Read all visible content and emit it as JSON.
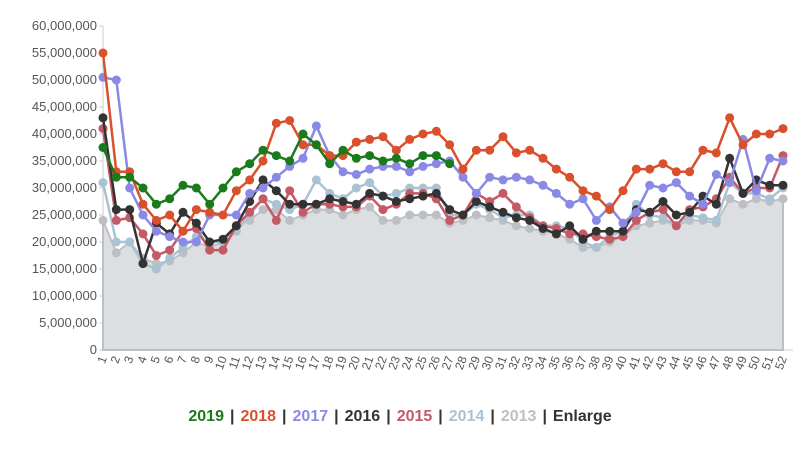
{
  "chart_data": {
    "type": "line",
    "categories": [
      "1",
      "2",
      "3",
      "4",
      "5",
      "6",
      "7",
      "8",
      "9",
      "10",
      "11",
      "12",
      "13",
      "14",
      "15",
      "16",
      "17",
      "18",
      "19",
      "20",
      "21",
      "22",
      "23",
      "24",
      "25",
      "26",
      "27",
      "28",
      "29",
      "30",
      "31",
      "32",
      "33",
      "34",
      "35",
      "36",
      "37",
      "38",
      "39",
      "40",
      "41",
      "42",
      "43",
      "44",
      "45",
      "46",
      "47",
      "48",
      "49",
      "50",
      "51",
      "52"
    ],
    "ylim": [
      0,
      60000000
    ],
    "yticks": [
      0,
      {
        "value": 5000000,
        "label": "5,000,000"
      },
      {
        "value": 10000000,
        "label": "10,000,000"
      },
      {
        "value": 15000000,
        "label": "15,000,000"
      },
      {
        "value": 20000000,
        "label": "20,000,000"
      },
      {
        "value": 25000000,
        "label": "25,000,000"
      },
      {
        "value": 30000000,
        "label": "30,000,000"
      },
      {
        "value": 35000000,
        "label": "35,000,000"
      },
      {
        "value": 40000000,
        "label": "40,000,000"
      },
      {
        "value": 45000000,
        "label": "45,000,000"
      },
      {
        "value": 50000000,
        "label": "50,000,000"
      },
      {
        "value": 55000000,
        "label": "55,000,000"
      },
      {
        "value": 60000000,
        "label": "60,000,000"
      }
    ],
    "legend_separator": "|",
    "enlarge": "Enlarge",
    "series": [
      {
        "name": "2019",
        "color": "#1b7a1b",
        "values": [
          37500000,
          32000000,
          32000000,
          30000000,
          27000000,
          28000000,
          30500000,
          30000000,
          27000000,
          30000000,
          33000000,
          34500000,
          37000000,
          36000000,
          35000000,
          40000000,
          38000000,
          34500000,
          37000000,
          35500000,
          36000000,
          35000000,
          35500000,
          34500000,
          36000000,
          36000000,
          34500000,
          null,
          null,
          null,
          null,
          null,
          null,
          null,
          null,
          null,
          null,
          null,
          null,
          null,
          null,
          null,
          null,
          null,
          null,
          null,
          null,
          null,
          null,
          null,
          null,
          null
        ]
      },
      {
        "name": "2018",
        "color": "#d9502c",
        "values": [
          55000000,
          33000000,
          33000000,
          27000000,
          24000000,
          25000000,
          22000000,
          26000000,
          25500000,
          25000000,
          29500000,
          31500000,
          35000000,
          42000000,
          42500000,
          38000000,
          38000000,
          36000000,
          36000000,
          38500000,
          39000000,
          39500000,
          37000000,
          39000000,
          40000000,
          40500000,
          38000000,
          33500000,
          37000000,
          37000000,
          39500000,
          36500000,
          37000000,
          35500000,
          33500000,
          32000000,
          29500000,
          28500000,
          26000000,
          29500000,
          33500000,
          33500000,
          34500000,
          33000000,
          33000000,
          37000000,
          36500000,
          43000000,
          38000000,
          40000000,
          40000000,
          41000000
        ]
      },
      {
        "name": "2017",
        "color": "#8a8ae6",
        "values": [
          50500000,
          50000000,
          30000000,
          25000000,
          22000000,
          21000000,
          20000000,
          20000000,
          25000000,
          25000000,
          25000000,
          29000000,
          30000000,
          32000000,
          34000000,
          35500000,
          41500000,
          36000000,
          33000000,
          32500000,
          33500000,
          34000000,
          34000000,
          33000000,
          34000000,
          34500000,
          35000000,
          32000000,
          29000000,
          32000000,
          31500000,
          32000000,
          31500000,
          30500000,
          29000000,
          27000000,
          28000000,
          24000000,
          26500000,
          23500000,
          25500000,
          30500000,
          30000000,
          31000000,
          28500000,
          27000000,
          32500000,
          31000000,
          39000000,
          29500000,
          35500000,
          35000000
        ]
      },
      {
        "name": "2016",
        "color": "#333333",
        "values": [
          43000000,
          26000000,
          26000000,
          16000000,
          23500000,
          21500000,
          25500000,
          23500000,
          20000000,
          20500000,
          23000000,
          27500000,
          31500000,
          29500000,
          27000000,
          27000000,
          27000000,
          28000000,
          27500000,
          27000000,
          29000000,
          28500000,
          27500000,
          28000000,
          28500000,
          29000000,
          26000000,
          25000000,
          27500000,
          26500000,
          25500000,
          24500000,
          24000000,
          22500000,
          21500000,
          23000000,
          20500000,
          22000000,
          22000000,
          22000000,
          26000000,
          25500000,
          27500000,
          25000000,
          25500000,
          28500000,
          27000000,
          35500000,
          29000000,
          31500000,
          30500000,
          30500000
        ]
      },
      {
        "name": "2015",
        "color": "#c45a66",
        "values": [
          41000000,
          24000000,
          24500000,
          21500000,
          17500000,
          18500000,
          22000000,
          22500000,
          18500000,
          18500000,
          23000000,
          25500000,
          28000000,
          24000000,
          29500000,
          25500000,
          27000000,
          27000000,
          26500000,
          26500000,
          28500000,
          26000000,
          27000000,
          29000000,
          29000000,
          28000000,
          24000000,
          25000000,
          29000000,
          27500000,
          29000000,
          26500000,
          24500000,
          23000000,
          22500000,
          21500000,
          21500000,
          21000000,
          20500000,
          21000000,
          24000000,
          25500000,
          26000000,
          23000000,
          26000000,
          26500000,
          28000000,
          32000000,
          29000000,
          30000000,
          30000000,
          36000000
        ]
      },
      {
        "name": "2014",
        "color": "#a9c3d3",
        "values": [
          31000000,
          20000000,
          20000000,
          16000000,
          15000000,
          17000000,
          19000000,
          21000000,
          20000000,
          20000000,
          22000000,
          25000000,
          28000000,
          27000000,
          26000000,
          27000000,
          31500000,
          29000000,
          28000000,
          30000000,
          31000000,
          28500000,
          29000000,
          30000000,
          30000000,
          30000000,
          25000000,
          25000000,
          27000000,
          26000000,
          24500000,
          25000000,
          25000000,
          23000000,
          23000000,
          22500000,
          20000000,
          19000000,
          21000000,
          22000000,
          27000000,
          25000000,
          24500000,
          23000000,
          25000000,
          24500000,
          24000000,
          31000000,
          29000000,
          29000000,
          28000000,
          30000000
        ]
      },
      {
        "name": "2013",
        "color": "#bcc0c4",
        "values": [
          24000000,
          18000000,
          20000000,
          17000000,
          16000000,
          16500000,
          18000000,
          20000000,
          19000000,
          20000000,
          23000000,
          24000000,
          26000000,
          26000000,
          24000000,
          25000000,
          26000000,
          26000000,
          25000000,
          26000000,
          26500000,
          24000000,
          24000000,
          25000000,
          25000000,
          25000000,
          23500000,
          24000000,
          25000000,
          24500000,
          24000000,
          23000000,
          22500000,
          22000000,
          21500000,
          20500000,
          19000000,
          19000000,
          20000000,
          21000000,
          23000000,
          23500000,
          24000000,
          23000000,
          24000000,
          24000000,
          23500000,
          28000000,
          27000000,
          28000000,
          27500000,
          28000000
        ]
      }
    ]
  }
}
